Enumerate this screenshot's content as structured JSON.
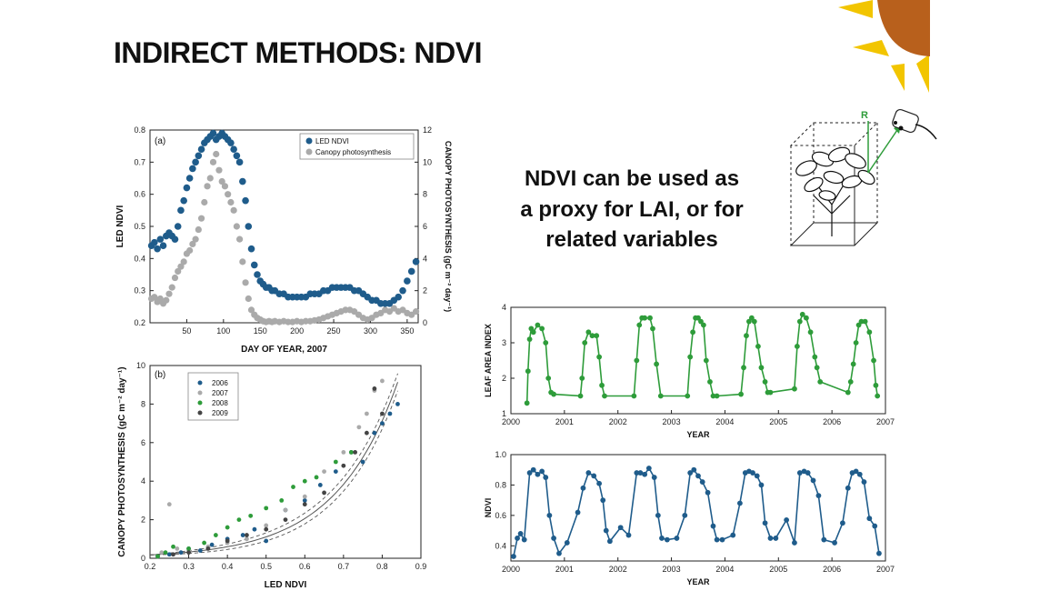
{
  "slide": {
    "title": "INDIRECT METHODS: NDVI",
    "text_lines": [
      "NDVI can be used as",
      "a proxy for LAI, or for",
      "related variables"
    ],
    "sensor_label": "R"
  },
  "colors": {
    "sun": "#B8601C",
    "rays": "#F2C500",
    "blue": "#1F5C8B",
    "gray": "#AAAAAA",
    "green": "#2E9C3A",
    "dark": "#444444"
  },
  "chart_data": [
    {
      "id": "a",
      "type": "scatter",
      "panel_label": "(a)",
      "xlabel": "DAY OF YEAR, 2007",
      "ylabel": "LED NDVI",
      "y2label": "CANOPY PHOTOSYNTHESIS (gC m⁻² day⁻¹)",
      "xlim": [
        0,
        365
      ],
      "ylim": [
        0.2,
        0.8
      ],
      "y2lim": [
        0,
        12
      ],
      "xticks": [
        50,
        100,
        150,
        200,
        250,
        300,
        350
      ],
      "yticks": [
        0.2,
        0.3,
        0.4,
        0.5,
        0.6,
        0.7,
        0.8
      ],
      "y2ticks": [
        0,
        2,
        4,
        6,
        8,
        10,
        12
      ],
      "legend": [
        "LED NDVI",
        "Canopy photosynthesis"
      ],
      "series": [
        {
          "name": "LED NDVI",
          "axis": "left",
          "x": [
            2,
            6,
            10,
            14,
            18,
            22,
            26,
            30,
            34,
            38,
            42,
            46,
            50,
            54,
            58,
            62,
            66,
            70,
            74,
            78,
            82,
            86,
            90,
            94,
            98,
            102,
            106,
            110,
            114,
            118,
            122,
            126,
            130,
            134,
            138,
            142,
            146,
            150,
            154,
            158,
            162,
            166,
            170,
            176,
            182,
            188,
            194,
            200,
            206,
            212,
            218,
            224,
            230,
            236,
            242,
            248,
            254,
            260,
            266,
            272,
            278,
            284,
            290,
            296,
            302,
            308,
            314,
            320,
            326,
            332,
            338,
            344,
            350,
            356,
            362
          ],
          "y": [
            0.44,
            0.45,
            0.43,
            0.46,
            0.44,
            0.47,
            0.48,
            0.47,
            0.46,
            0.5,
            0.55,
            0.58,
            0.62,
            0.65,
            0.68,
            0.7,
            0.72,
            0.74,
            0.76,
            0.77,
            0.78,
            0.79,
            0.77,
            0.78,
            0.79,
            0.78,
            0.77,
            0.76,
            0.74,
            0.72,
            0.7,
            0.64,
            0.58,
            0.5,
            0.43,
            0.38,
            0.35,
            0.33,
            0.32,
            0.31,
            0.31,
            0.3,
            0.3,
            0.29,
            0.29,
            0.28,
            0.28,
            0.28,
            0.28,
            0.28,
            0.29,
            0.29,
            0.29,
            0.3,
            0.3,
            0.31,
            0.31,
            0.31,
            0.31,
            0.31,
            0.3,
            0.3,
            0.29,
            0.28,
            0.27,
            0.27,
            0.26,
            0.26,
            0.26,
            0.27,
            0.28,
            0.3,
            0.33,
            0.36,
            0.39
          ]
        },
        {
          "name": "Canopy photosynthesis",
          "axis": "right",
          "x": [
            2,
            6,
            10,
            14,
            18,
            22,
            26,
            30,
            34,
            38,
            42,
            46,
            50,
            54,
            58,
            62,
            66,
            70,
            74,
            78,
            82,
            86,
            90,
            94,
            98,
            102,
            106,
            110,
            114,
            118,
            122,
            126,
            130,
            134,
            138,
            142,
            146,
            150,
            154,
            158,
            162,
            166,
            170,
            176,
            182,
            188,
            194,
            200,
            206,
            212,
            218,
            224,
            230,
            236,
            242,
            248,
            254,
            260,
            266,
            272,
            278,
            284,
            290,
            296,
            302,
            308,
            314,
            320,
            326,
            332,
            338,
            344,
            350,
            356,
            362
          ],
          "y": [
            1.5,
            1.6,
            1.3,
            1.5,
            1.2,
            1.4,
            1.8,
            2.2,
            2.8,
            3.2,
            3.5,
            3.8,
            4.3,
            4.5,
            4.9,
            5.2,
            5.8,
            6.5,
            7.5,
            8.5,
            9.0,
            10.0,
            10.5,
            9.5,
            8.8,
            8.5,
            8.0,
            7.5,
            7.0,
            6.0,
            5.2,
            3.8,
            2.5,
            1.5,
            0.8,
            0.5,
            0.3,
            0.2,
            0.1,
            0.05,
            0.1,
            0.05,
            0.1,
            0.05,
            0.1,
            0.05,
            0.05,
            0.1,
            0.05,
            0.1,
            0.1,
            0.15,
            0.2,
            0.3,
            0.4,
            0.5,
            0.6,
            0.7,
            0.8,
            0.8,
            0.7,
            0.5,
            0.3,
            0.2,
            0.3,
            0.5,
            0.6,
            0.8,
            0.7,
            0.9,
            0.7,
            0.8,
            0.6,
            0.5,
            0.7
          ]
        }
      ]
    },
    {
      "id": "b",
      "type": "scatter",
      "panel_label": "(b)",
      "xlabel": "LED NDVI",
      "ylabel": "CANOPY PHOTOSYNTHESIS (gC m⁻² day⁻¹)",
      "xlim": [
        0.2,
        0.9
      ],
      "ylim": [
        0,
        10
      ],
      "xticks": [
        0.2,
        0.3,
        0.4,
        0.5,
        0.6,
        0.7,
        0.8,
        0.9
      ],
      "yticks": [
        0,
        2,
        4,
        6,
        8,
        10
      ],
      "legend": [
        "2006",
        "2007",
        "2008",
        "2009"
      ],
      "fit_curve": {
        "a": 0.05,
        "b": 6.2
      },
      "series": [
        {
          "name": "2006",
          "x": [
            0.22,
            0.25,
            0.28,
            0.3,
            0.33,
            0.36,
            0.4,
            0.44,
            0.47,
            0.5,
            0.55,
            0.6,
            0.64,
            0.68,
            0.72,
            0.75,
            0.78,
            0.8,
            0.82,
            0.84
          ],
          "y": [
            0.1,
            0.2,
            0.3,
            0.5,
            0.4,
            0.7,
            1.0,
            1.2,
            1.5,
            0.9,
            2.5,
            3.0,
            3.8,
            4.5,
            5.5,
            5.0,
            6.5,
            7.0,
            7.5,
            8.0
          ]
        },
        {
          "name": "2007",
          "x": [
            0.23,
            0.25,
            0.27,
            0.3,
            0.35,
            0.4,
            0.45,
            0.5,
            0.55,
            0.6,
            0.65,
            0.7,
            0.74,
            0.76,
            0.78,
            0.8
          ],
          "y": [
            0.3,
            2.8,
            0.5,
            0.4,
            0.6,
            0.8,
            1.0,
            1.7,
            2.5,
            3.2,
            4.5,
            5.5,
            6.8,
            7.5,
            8.7,
            9.2
          ]
        },
        {
          "name": "2008",
          "x": [
            0.22,
            0.24,
            0.26,
            0.3,
            0.34,
            0.37,
            0.4,
            0.43,
            0.46,
            0.5,
            0.54,
            0.57,
            0.6,
            0.63,
            0.68,
            0.72
          ],
          "y": [
            0.1,
            0.3,
            0.6,
            0.5,
            0.8,
            1.2,
            1.6,
            2.0,
            2.2,
            2.6,
            3.0,
            3.7,
            4.0,
            4.2,
            5.0,
            5.5
          ]
        },
        {
          "name": "2009",
          "x": [
            0.26,
            0.3,
            0.35,
            0.4,
            0.45,
            0.5,
            0.55,
            0.6,
            0.65,
            0.7,
            0.73,
            0.76,
            0.78,
            0.8
          ],
          "y": [
            0.2,
            0.3,
            0.5,
            0.9,
            1.2,
            1.5,
            2.0,
            2.8,
            3.4,
            4.8,
            5.5,
            6.5,
            8.8,
            7.5
          ]
        }
      ]
    },
    {
      "id": "lai",
      "type": "line",
      "xlabel": "YEAR",
      "ylabel": "LEAF AREA INDEX",
      "xlim": [
        2000,
        2007
      ],
      "ylim": [
        1,
        4
      ],
      "xticks": [
        2000,
        2001,
        2002,
        2003,
        2004,
        2005,
        2006,
        2007
      ],
      "yticks": [
        1,
        2,
        3,
        4
      ],
      "series": [
        {
          "name": "LAI",
          "x": [
            2000.3,
            2000.32,
            2000.35,
            2000.38,
            2000.42,
            2000.5,
            2000.58,
            2000.65,
            2000.7,
            2000.75,
            2000.8,
            2001.3,
            2001.33,
            2001.38,
            2001.45,
            2001.52,
            2001.6,
            2001.65,
            2001.7,
            2001.75,
            2002.3,
            2002.35,
            2002.4,
            2002.45,
            2002.5,
            2002.6,
            2002.65,
            2002.72,
            2002.8,
            2003.3,
            2003.35,
            2003.4,
            2003.45,
            2003.5,
            2003.55,
            2003.6,
            2003.65,
            2003.72,
            2003.78,
            2003.85,
            2004.3,
            2004.35,
            2004.4,
            2004.45,
            2004.5,
            2004.55,
            2004.62,
            2004.68,
            2004.75,
            2004.8,
            2004.85,
            2005.3,
            2005.35,
            2005.4,
            2005.45,
            2005.52,
            2005.6,
            2005.68,
            2005.72,
            2005.78,
            2006.3,
            2006.35,
            2006.4,
            2006.45,
            2006.5,
            2006.55,
            2006.62,
            2006.7,
            2006.78,
            2006.82,
            2006.85
          ],
          "y": [
            1.3,
            2.2,
            3.1,
            3.4,
            3.3,
            3.5,
            3.4,
            3.0,
            2.0,
            1.6,
            1.55,
            1.5,
            2.0,
            3.0,
            3.3,
            3.2,
            3.2,
            2.6,
            1.8,
            1.5,
            1.5,
            2.5,
            3.5,
            3.7,
            3.7,
            3.7,
            3.4,
            2.4,
            1.5,
            1.5,
            2.6,
            3.3,
            3.7,
            3.7,
            3.6,
            3.5,
            2.5,
            1.9,
            1.5,
            1.5,
            1.55,
            2.3,
            3.2,
            3.6,
            3.7,
            3.6,
            2.9,
            2.3,
            1.9,
            1.6,
            1.6,
            1.7,
            2.9,
            3.6,
            3.8,
            3.7,
            3.3,
            2.6,
            2.3,
            1.9,
            1.6,
            1.9,
            2.4,
            3.0,
            3.5,
            3.6,
            3.6,
            3.3,
            2.5,
            1.8,
            1.5
          ]
        }
      ]
    },
    {
      "id": "ndvi",
      "type": "line",
      "xlabel": "YEAR",
      "ylabel": "NDVI",
      "xlim": [
        2000,
        2007
      ],
      "ylim": [
        0.3,
        1
      ],
      "xticks": [
        2000,
        2001,
        2002,
        2003,
        2004,
        2005,
        2006,
        2007
      ],
      "yticks": [
        0.4,
        0.6,
        0.8,
        1
      ],
      "series": [
        {
          "name": "NDVI",
          "x": [
            2000.05,
            2000.12,
            2000.18,
            2000.25,
            2000.35,
            2000.42,
            2000.5,
            2000.58,
            2000.65,
            2000.72,
            2000.8,
            2000.9,
            2001.05,
            2001.25,
            2001.35,
            2001.45,
            2001.55,
            2001.65,
            2001.72,
            2001.78,
            2001.85,
            2002.05,
            2002.2,
            2002.35,
            2002.42,
            2002.5,
            2002.58,
            2002.68,
            2002.75,
            2002.82,
            2002.92,
            2003.1,
            2003.25,
            2003.35,
            2003.42,
            2003.5,
            2003.58,
            2003.68,
            2003.78,
            2003.85,
            2003.95,
            2004.15,
            2004.28,
            2004.38,
            2004.45,
            2004.52,
            2004.6,
            2004.68,
            2004.75,
            2004.85,
            2004.95,
            2005.15,
            2005.3,
            2005.4,
            2005.48,
            2005.55,
            2005.65,
            2005.75,
            2005.85,
            2006.05,
            2006.2,
            2006.3,
            2006.38,
            2006.45,
            2006.52,
            2006.6,
            2006.7,
            2006.8,
            2006.88
          ],
          "y": [
            0.33,
            0.45,
            0.48,
            0.44,
            0.88,
            0.9,
            0.87,
            0.89,
            0.85,
            0.6,
            0.45,
            0.35,
            0.42,
            0.62,
            0.78,
            0.88,
            0.86,
            0.81,
            0.7,
            0.5,
            0.43,
            0.52,
            0.47,
            0.88,
            0.88,
            0.87,
            0.91,
            0.85,
            0.6,
            0.45,
            0.44,
            0.45,
            0.6,
            0.88,
            0.9,
            0.86,
            0.82,
            0.75,
            0.53,
            0.44,
            0.44,
            0.47,
            0.68,
            0.88,
            0.89,
            0.88,
            0.86,
            0.8,
            0.55,
            0.45,
            0.45,
            0.57,
            0.42,
            0.88,
            0.89,
            0.88,
            0.83,
            0.73,
            0.44,
            0.42,
            0.55,
            0.78,
            0.88,
            0.89,
            0.87,
            0.82,
            0.58,
            0.53,
            0.35
          ]
        }
      ]
    }
  ]
}
